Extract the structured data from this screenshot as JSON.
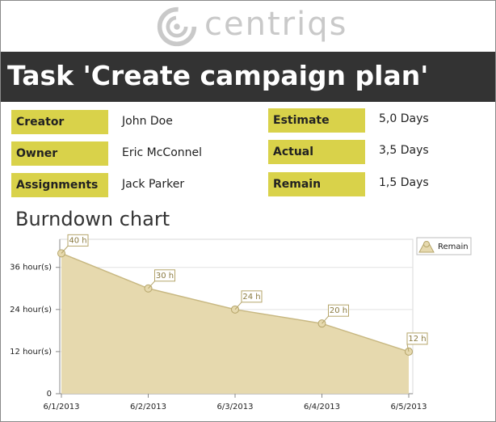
{
  "header": {
    "logo": "centriqs",
    "title": "Task 'Create campaign plan'"
  },
  "fields_left": [
    {
      "label": "Creator",
      "value": "John Doe"
    },
    {
      "label": "Owner",
      "value": "Eric McConnel"
    },
    {
      "label": "Assignments",
      "value": "Jack Parker"
    }
  ],
  "fields_right": [
    {
      "label": "Estimate",
      "value": "5,0 Days"
    },
    {
      "label": "Actual",
      "value": "3,5 Days"
    },
    {
      "label": "Remain",
      "value": "1,5 Days"
    }
  ],
  "chart_data": {
    "type": "area",
    "title": "Burndown chart",
    "categories": [
      "6/1/2013",
      "6/2/2013",
      "6/3/2013",
      "6/4/2013",
      "6/5/2013"
    ],
    "series": [
      {
        "name": "Remain",
        "color": "#e6d9ae",
        "values": [
          40,
          30,
          24,
          20,
          12
        ],
        "value_labels": [
          "40 h",
          "30 h",
          "24 h",
          "20 h",
          "12 h"
        ]
      }
    ],
    "ylim": [
      0,
      44
    ],
    "yticks": [
      0,
      {
        "value": 12,
        "label": "12 hour(s)"
      },
      {
        "value": 24,
        "label": "24 hour(s)"
      },
      {
        "value": 36,
        "label": "36 hour(s)"
      }
    ],
    "grid": true,
    "legend": "top-right"
  }
}
